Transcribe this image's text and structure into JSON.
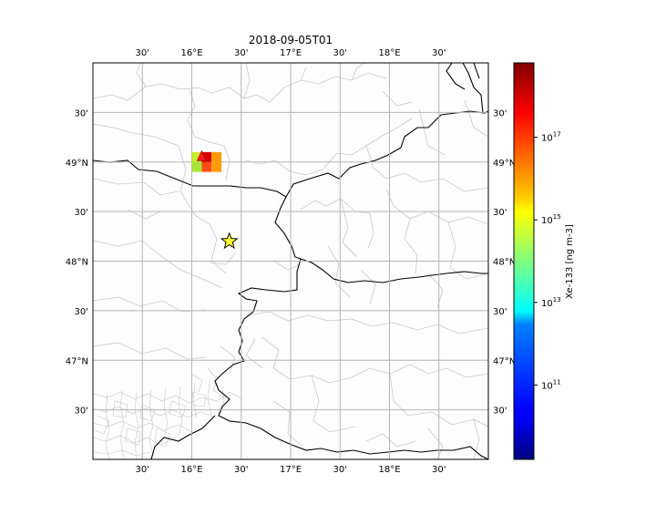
{
  "title": "2018-09-05T01",
  "map": {
    "lon_range": [
      15.0,
      19.0
    ],
    "lat_range": [
      46.0,
      50.0
    ],
    "gridlines": true,
    "top_ticks": [
      {
        "lon": 15.5,
        "label": "30'"
      },
      {
        "lon": 16.0,
        "label": "16°E"
      },
      {
        "lon": 16.5,
        "label": "30'"
      },
      {
        "lon": 17.0,
        "label": "17°E"
      },
      {
        "lon": 17.5,
        "label": "30'"
      },
      {
        "lon": 18.0,
        "label": "18°E"
      },
      {
        "lon": 18.5,
        "label": "30'"
      }
    ],
    "bottom_ticks": [
      {
        "lon": 15.5,
        "label": "30'"
      },
      {
        "lon": 16.0,
        "label": "16°E"
      },
      {
        "lon": 16.5,
        "label": "30'"
      },
      {
        "lon": 17.0,
        "label": "17°E"
      },
      {
        "lon": 17.5,
        "label": "30'"
      },
      {
        "lon": 18.0,
        "label": "18°E"
      },
      {
        "lon": 18.5,
        "label": "30'"
      }
    ],
    "left_ticks": [
      {
        "lat": 49.5,
        "label": "30'"
      },
      {
        "lat": 49.0,
        "label": "49°N"
      },
      {
        "lat": 48.5,
        "label": "30'"
      },
      {
        "lat": 48.0,
        "label": "48°N"
      },
      {
        "lat": 47.5,
        "label": "30'"
      },
      {
        "lat": 47.0,
        "label": "47°N"
      },
      {
        "lat": 46.5,
        "label": "30'"
      }
    ],
    "right_ticks": [
      {
        "lat": 49.5,
        "label": "30'"
      },
      {
        "lat": 49.0,
        "label": "49°N"
      },
      {
        "lat": 48.5,
        "label": "30'"
      },
      {
        "lat": 48.0,
        "label": "48°N"
      },
      {
        "lat": 47.5,
        "label": "30'"
      },
      {
        "lat": 47.0,
        "label": "47°N"
      },
      {
        "lat": 46.5,
        "label": "30'"
      }
    ],
    "plume_cells": [
      {
        "lon": 16.0,
        "lat": 48.9,
        "color": "#a6e83a"
      },
      {
        "lon": 16.1,
        "lat": 48.9,
        "color": "#ff4d1a"
      },
      {
        "lon": 16.2,
        "lat": 48.9,
        "color": "#ff9a0a"
      },
      {
        "lon": 16.0,
        "lat": 49.0,
        "color": "#c8ea2a"
      },
      {
        "lon": 16.1,
        "lat": 49.0,
        "color": "#d40000"
      },
      {
        "lon": 16.2,
        "lat": 49.0,
        "color": "#ff9a0a"
      }
    ],
    "release_marker": {
      "lon": 16.1,
      "lat": 49.05,
      "color": "#ff1a1a"
    },
    "source_star": {
      "lon": 16.38,
      "lat": 48.2,
      "color": "#ffff33"
    },
    "border_color": "#000000",
    "admin_color": "#c8c8c8"
  },
  "colorbar": {
    "label": "Xe-133 [ng m-3]",
    "colormap": "jet",
    "log_min": 9.2,
    "log_max": 18.8,
    "ticks": [
      {
        "exp": 11,
        "label": "10",
        "sup": "11"
      },
      {
        "exp": 13,
        "label": "10",
        "sup": "13"
      },
      {
        "exp": 15,
        "label": "10",
        "sup": "15"
      },
      {
        "exp": 17,
        "label": "10",
        "sup": "17"
      }
    ]
  }
}
